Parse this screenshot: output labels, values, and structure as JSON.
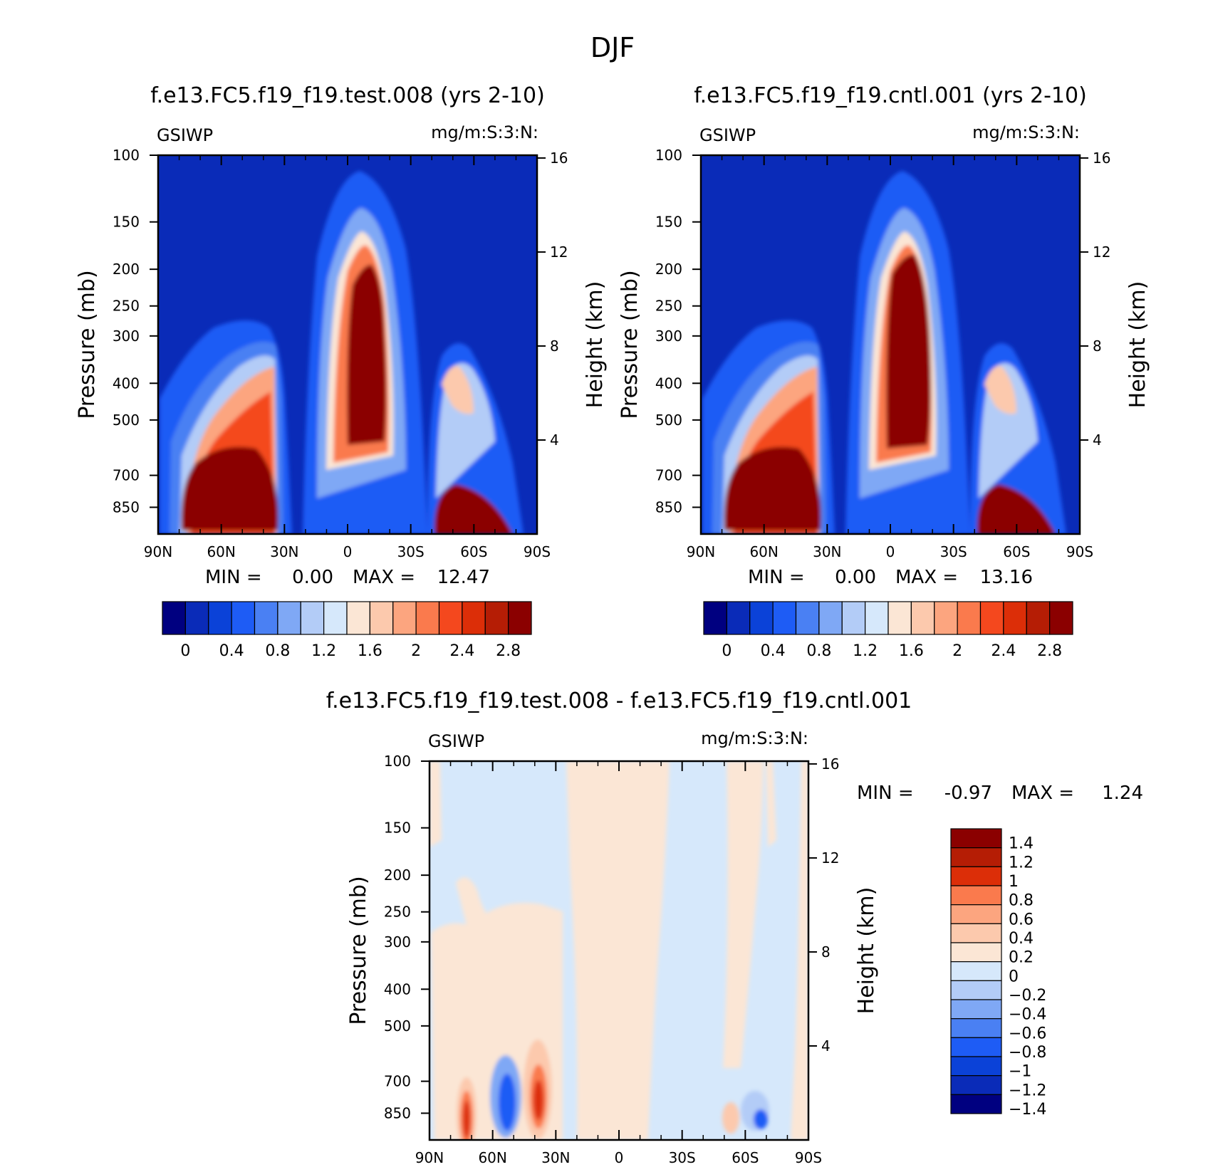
{
  "chart_data": {
    "type": "heatmap",
    "title": "DJF",
    "panels": [
      {
        "id": "test",
        "title": "f.e13.FC5.f19_f19.test.008 (yrs 2-10)",
        "variable": "GSIWP",
        "units": "mg/m:S:3:N:",
        "ylabel": "Pressure (mb)",
        "ylabel_right": "Height (km)",
        "x_ticks": [
          "90N",
          "60N",
          "30N",
          "0",
          "30S",
          "60S",
          "90S"
        ],
        "y_ticks": [
          "100",
          "150",
          "200",
          "250",
          "300",
          "400",
          "500",
          "700",
          "850"
        ],
        "y_ticks_right": [
          "16",
          "12",
          "8",
          "4"
        ],
        "min_label": "MIN =",
        "min_value": "0.00",
        "max_label": "MAX =",
        "max_value": "12.47"
      },
      {
        "id": "cntl",
        "title": "f.e13.FC5.f19_f19.cntl.001 (yrs 2-10)",
        "variable": "GSIWP",
        "units": "mg/m:S:3:N:",
        "ylabel": "Pressure (mb)",
        "ylabel_right": "Height (km)",
        "x_ticks": [
          "90N",
          "60N",
          "30N",
          "0",
          "30S",
          "60S",
          "90S"
        ],
        "y_ticks": [
          "100",
          "150",
          "200",
          "250",
          "300",
          "400",
          "500",
          "700",
          "850"
        ],
        "y_ticks_right": [
          "16",
          "12",
          "8",
          "4"
        ],
        "min_label": "MIN =",
        "min_value": "0.00",
        "max_label": "MAX =",
        "max_value": "13.16"
      },
      {
        "id": "diff",
        "title": "f.e13.FC5.f19_f19.test.008 - f.e13.FC5.f19_f19.cntl.001",
        "variable": "GSIWP",
        "units": "mg/m:S:3:N:",
        "ylabel": "Pressure (mb)",
        "ylabel_right": "Height (km)",
        "x_ticks": [
          "90N",
          "60N",
          "30N",
          "0",
          "30S",
          "60S",
          "90S"
        ],
        "y_ticks": [
          "100",
          "150",
          "200",
          "250",
          "300",
          "400",
          "500",
          "700",
          "850"
        ],
        "y_ticks_right": [
          "16",
          "12",
          "8",
          "4"
        ],
        "min_label": "MIN =",
        "min_value": "-0.97",
        "max_label": "MAX =",
        "max_value": "1.24"
      }
    ],
    "colorbar_top": {
      "colors": [
        "#000080",
        "#0a2bb8",
        "#0b42d8",
        "#1e5cf5",
        "#4a80f3",
        "#7fa8f5",
        "#b3ccf7",
        "#d6e8fb",
        "#fbe6d5",
        "#fcc9ad",
        "#fca57f",
        "#fa7a4d",
        "#f4481e",
        "#dc2e08",
        "#b51d05",
        "#8b0000"
      ],
      "labels": [
        "0",
        "0.4",
        "0.8",
        "1.2",
        "1.6",
        "2",
        "2.4",
        "2.8"
      ]
    },
    "colorbar_diff": {
      "colors": [
        "#8b0000",
        "#b51d05",
        "#dc2e08",
        "#fa7a4d",
        "#fca57f",
        "#fcc9ad",
        "#fbe6d5",
        "#d6e8fb",
        "#b3ccf7",
        "#7fa8f5",
        "#4a80f3",
        "#1e5cf5",
        "#0b42d8",
        "#0a2bb8",
        "#000080"
      ],
      "labels": [
        "1.4",
        "1.2",
        "1",
        "0.8",
        "0.6",
        "0.4",
        "0.2",
        "0",
        "-0.2",
        "-0.4",
        "-0.6",
        "-0.8",
        "-1",
        "-1.2",
        "-1.4"
      ]
    }
  }
}
